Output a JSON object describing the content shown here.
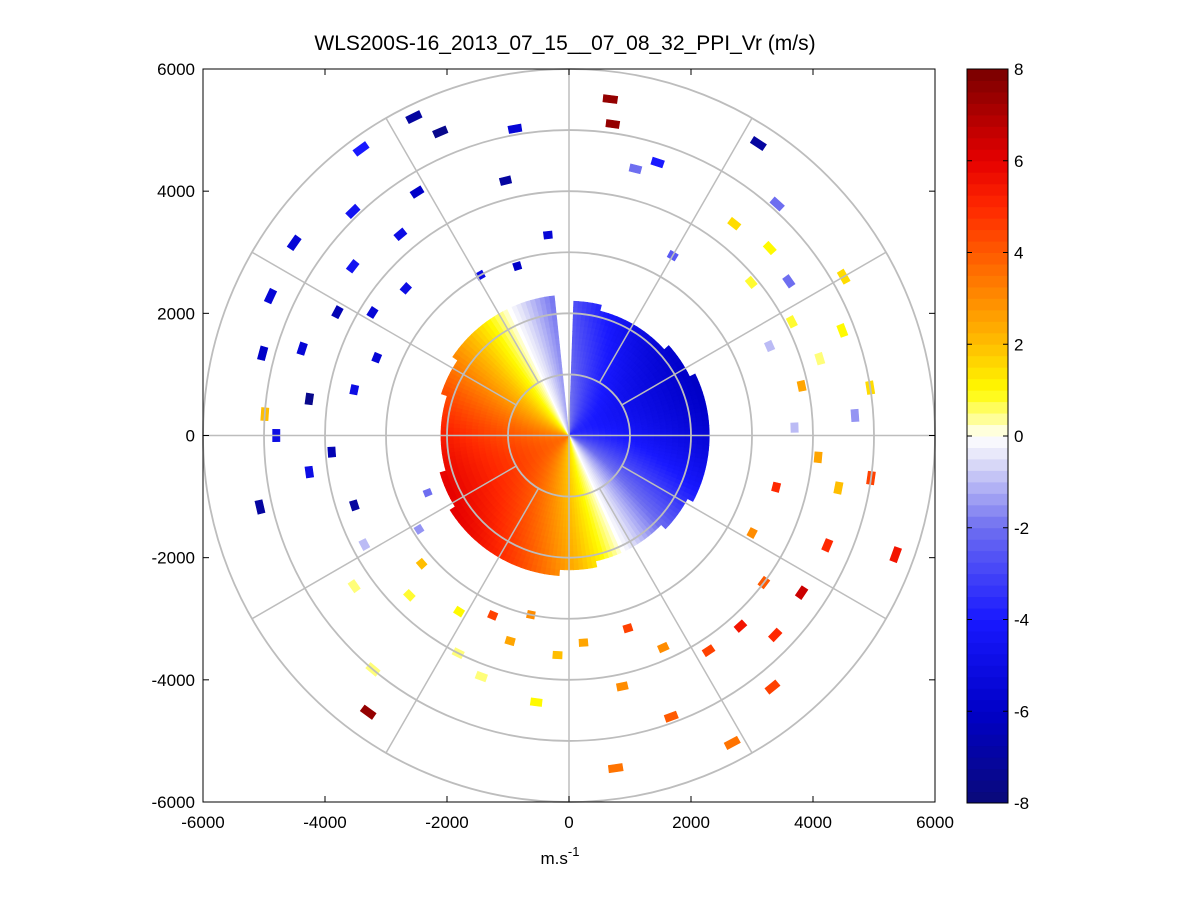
{
  "chart_data": {
    "type": "polar-ppi",
    "title": "WLS200S-16_2013_07_15__07_08_32_PPI_Vr (m/s)",
    "xlabel": "m.s",
    "xlabel_superscript": "-1",
    "ylabel": "",
    "xlim": [
      -6000,
      6000
    ],
    "ylim": [
      -6000,
      6000
    ],
    "xticks": [
      -6000,
      -4000,
      -2000,
      0,
      2000,
      4000,
      6000
    ],
    "yticks": [
      6000,
      4000,
      2000,
      0,
      -2000,
      -4000,
      -6000
    ],
    "xtick_labels": [
      "-6000",
      "-4000",
      "-2000",
      "0",
      "2000",
      "4000",
      "6000"
    ],
    "ytick_labels": [
      "6000",
      "4000",
      "2000",
      "0",
      "-2000",
      "-4000",
      "-6000"
    ],
    "range_rings": [
      1000,
      2000,
      3000,
      4000,
      5000,
      6000
    ],
    "azimuth_spokes_deg": [
      0,
      30,
      60,
      90,
      120,
      150,
      180,
      210,
      240,
      270,
      300,
      330
    ],
    "grid": true,
    "colorbar": {
      "clim": [
        -8,
        8
      ],
      "ticks": [
        8,
        6,
        4,
        2,
        0,
        -2,
        -4,
        -6,
        -8
      ],
      "tick_labels": [
        "8",
        "6",
        "4",
        "2",
        "0",
        "-2",
        "-4",
        "-6",
        "-8"
      ],
      "colormap": "blue-white-yellow-red",
      "placement": "right"
    },
    "dense_region_max_range": 2300,
    "gap_azimuth_deg": [
      355,
      2
    ],
    "wind_direction_deg": 245,
    "wind_speed": 3.5,
    "range_gate_m": 100,
    "azimuth_step_deg": 2,
    "sparse_returns": [
      {
        "az": 7,
        "range": 5550,
        "v": 7.5
      },
      {
        "az": 8,
        "range": 5150,
        "v": 7.5
      },
      {
        "az": 14,
        "range": 4500,
        "v": -2.0
      },
      {
        "az": 18,
        "range": 4700,
        "v": -4.0
      },
      {
        "az": 30,
        "range": 3400,
        "v": -2.5
      },
      {
        "az": 33,
        "range": 5700,
        "v": -7.0
      },
      {
        "az": 38,
        "range": 4400,
        "v": 1.5
      },
      {
        "az": 42,
        "range": 5100,
        "v": -2.0
      },
      {
        "az": 47,
        "range": 4500,
        "v": 1.0
      },
      {
        "az": 50,
        "range": 3900,
        "v": 0.8
      },
      {
        "az": 55,
        "range": 4400,
        "v": -2.0
      },
      {
        "az": 60,
        "range": 5200,
        "v": 1.5
      },
      {
        "az": 63,
        "range": 4100,
        "v": 0.8
      },
      {
        "az": 66,
        "range": 3600,
        "v": -1.0
      },
      {
        "az": 69,
        "range": 4800,
        "v": 1.0
      },
      {
        "az": 73,
        "range": 4300,
        "v": 0.5
      },
      {
        "az": 78,
        "range": 3900,
        "v": 2.5
      },
      {
        "az": 81,
        "range": 5000,
        "v": 1.5
      },
      {
        "az": 86,
        "range": 4700,
        "v": -1.5
      },
      {
        "az": 88,
        "range": 3700,
        "v": -1.0
      },
      {
        "az": 95,
        "range": 4100,
        "v": 2.5
      },
      {
        "az": 98,
        "range": 5000,
        "v": 4.5
      },
      {
        "az": 101,
        "range": 4500,
        "v": 2.0
      },
      {
        "az": 104,
        "range": 3500,
        "v": 5.0
      },
      {
        "az": 110,
        "range": 5700,
        "v": 5.5
      },
      {
        "az": 113,
        "range": 4600,
        "v": 5.0
      },
      {
        "az": 118,
        "range": 3400,
        "v": 3.0
      },
      {
        "az": 124,
        "range": 4600,
        "v": 6.5
      },
      {
        "az": 127,
        "range": 4000,
        "v": 4.0
      },
      {
        "az": 134,
        "range": 4700,
        "v": 5.0
      },
      {
        "az": 138,
        "range": 4200,
        "v": 5.5
      },
      {
        "az": 141,
        "range": 5300,
        "v": 4.5
      },
      {
        "az": 147,
        "range": 4200,
        "v": 4.5
      },
      {
        "az": 152,
        "range": 5700,
        "v": 3.5
      },
      {
        "az": 156,
        "range": 3800,
        "v": 3.0
      },
      {
        "az": 160,
        "range": 4900,
        "v": 4.0
      },
      {
        "az": 163,
        "range": 3300,
        "v": 4.5
      },
      {
        "az": 168,
        "range": 4200,
        "v": 3.0
      },
      {
        "az": 172,
        "range": 5500,
        "v": 3.5
      },
      {
        "az": 176,
        "range": 3400,
        "v": 2.5
      },
      {
        "az": 183,
        "range": 3600,
        "v": 2.0
      },
      {
        "az": 187,
        "range": 4400,
        "v": 1.0
      },
      {
        "az": 192,
        "range": 3000,
        "v": 3.0
      },
      {
        "az": 196,
        "range": 3500,
        "v": 2.5
      },
      {
        "az": 200,
        "range": 4200,
        "v": 0.5
      },
      {
        "az": 203,
        "range": 3200,
        "v": 4.5
      },
      {
        "az": 207,
        "range": 4000,
        "v": 0.5
      },
      {
        "az": 212,
        "range": 3400,
        "v": 1.0
      },
      {
        "az": 216,
        "range": 5600,
        "v": 7.5
      },
      {
        "az": 220,
        "range": 5000,
        "v": 0.5
      },
      {
        "az": 225,
        "range": 3700,
        "v": 0.8
      },
      {
        "az": 229,
        "range": 3200,
        "v": 2.0
      },
      {
        "az": 235,
        "range": 4300,
        "v": 0.5
      },
      {
        "az": 238,
        "range": 2900,
        "v": -1.5
      },
      {
        "az": 242,
        "range": 3800,
        "v": -1.0
      },
      {
        "az": 248,
        "range": 2500,
        "v": -2.0
      },
      {
        "az": 252,
        "range": 3700,
        "v": -7.0
      },
      {
        "az": 257,
        "range": 5200,
        "v": -7.0
      },
      {
        "az": 262,
        "range": 4300,
        "v": -5.0
      },
      {
        "az": 266,
        "range": 3900,
        "v": -6.5
      },
      {
        "az": 270,
        "range": 4800,
        "v": -5.0
      },
      {
        "az": 274,
        "range": 5000,
        "v": 2.0
      },
      {
        "az": 278,
        "range": 4300,
        "v": -7.5
      },
      {
        "az": 282,
        "range": 3600,
        "v": -5.0
      },
      {
        "az": 285,
        "range": 5200,
        "v": -6.0
      },
      {
        "az": 288,
        "range": 4600,
        "v": -5.5
      },
      {
        "az": 292,
        "range": 3400,
        "v": -5.5
      },
      {
        "az": 295,
        "range": 5400,
        "v": -5.5
      },
      {
        "az": 298,
        "range": 4300,
        "v": -6.5
      },
      {
        "az": 302,
        "range": 3800,
        "v": -5.5
      },
      {
        "az": 305,
        "range": 5500,
        "v": -5.5
      },
      {
        "az": 308,
        "range": 4500,
        "v": -4.5
      },
      {
        "az": 312,
        "range": 3600,
        "v": -5.0
      },
      {
        "az": 316,
        "range": 5100,
        "v": -4.5
      },
      {
        "az": 320,
        "range": 4300,
        "v": -5.0
      },
      {
        "az": 324,
        "range": 5800,
        "v": -4.0
      },
      {
        "az": 328,
        "range": 4700,
        "v": -6.0
      },
      {
        "az": 331,
        "range": 3000,
        "v": -5.0
      },
      {
        "az": 334,
        "range": 5800,
        "v": -7.0
      },
      {
        "az": 337,
        "range": 5400,
        "v": -7.5
      },
      {
        "az": 343,
        "range": 2900,
        "v": -6.0
      },
      {
        "az": 346,
        "range": 4300,
        "v": -7.0
      },
      {
        "az": 350,
        "range": 5100,
        "v": -5.5
      },
      {
        "az": 354,
        "range": 3300,
        "v": -5.5
      }
    ]
  }
}
